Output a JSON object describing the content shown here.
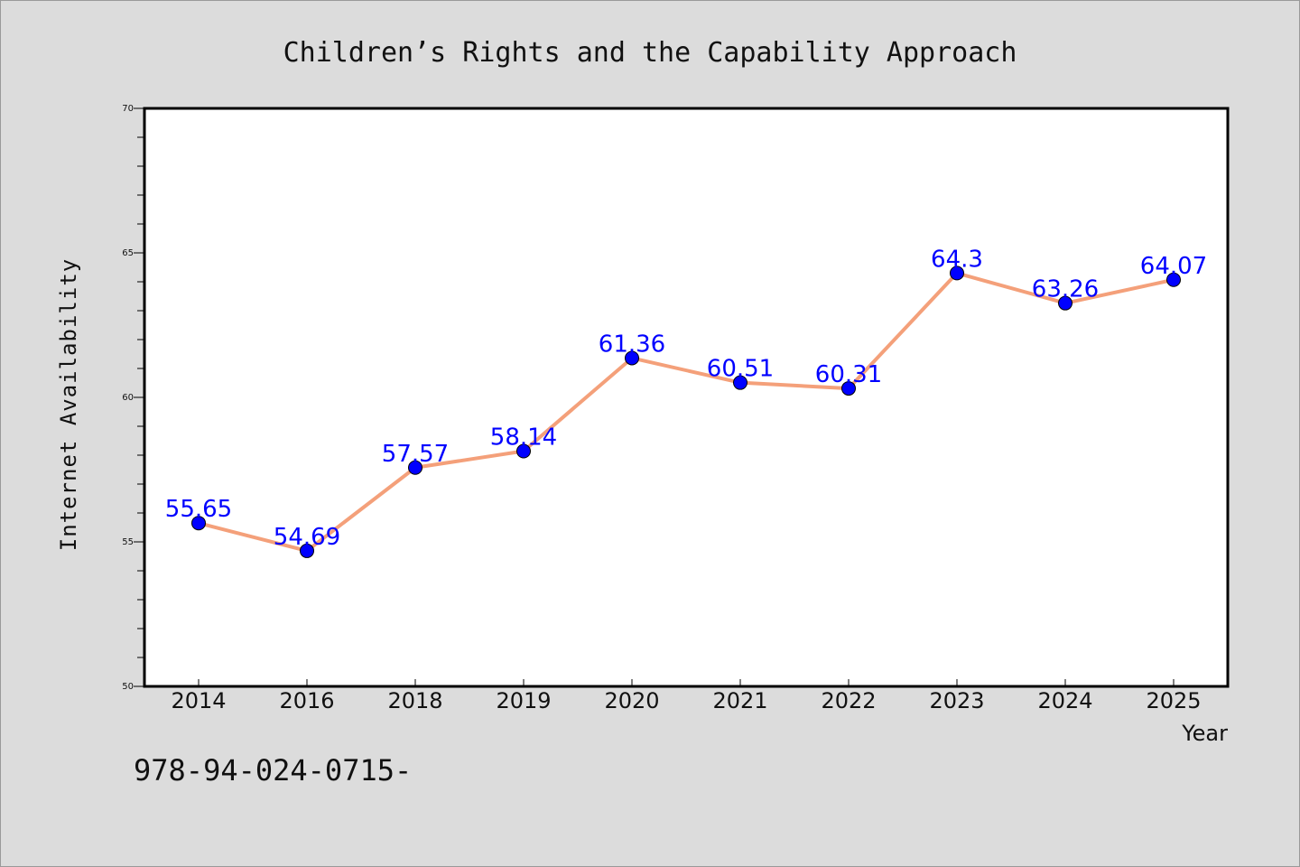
{
  "chart_data": {
    "type": "line",
    "title": "Children’s Rights and the Capability Approach",
    "xlabel": "Year",
    "ylabel": "Internet Availability",
    "categories": [
      "2014",
      "2016",
      "2018",
      "2019",
      "2020",
      "2021",
      "2022",
      "2023",
      "2024",
      "2025"
    ],
    "series": [
      {
        "values": [
          55.65,
          54.69,
          57.57,
          58.14,
          61.36,
          60.51,
          60.31,
          64.3,
          63.26,
          64.07
        ],
        "labels": [
          "55.65",
          "54.69",
          "57.57",
          "58.14",
          "61.36",
          "60.51",
          "60.31",
          "64.3",
          "63.26",
          "64.07"
        ],
        "line_color": "#f4a07a",
        "marker_color": "#0000ff"
      }
    ],
    "ylim": [
      50,
      70
    ],
    "yticks": [
      "50",
      "55",
      "60",
      "65",
      "70"
    ],
    "grid": false,
    "legend": false
  },
  "footer": {
    "isbn": "978-94-024-0715-"
  }
}
